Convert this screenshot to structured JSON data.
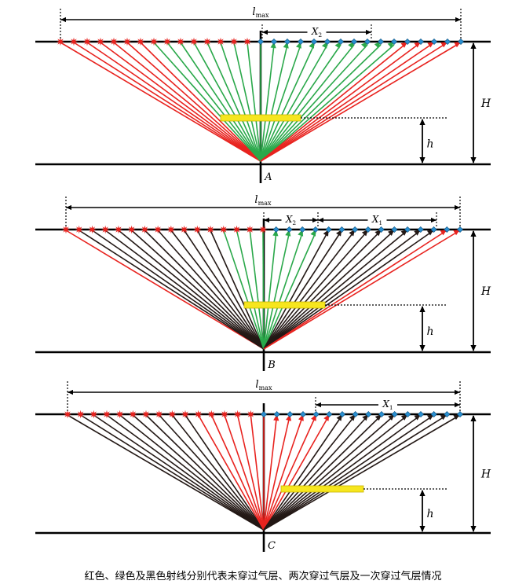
{
  "caption": "红色、绿色及黑色射线分别代表未穿过气层、两次穿过气层及一次穿过气层情况",
  "colors": {
    "red": "#e8231f",
    "green": "#2aa84a",
    "black": "#231815",
    "gas_layer": "#f6e61e",
    "receiver": "#2a8fd0"
  },
  "panels": [
    {
      "label": "A",
      "dim_lmax": {
        "main": "l",
        "sub": "max"
      },
      "dim_H": "H",
      "dim_h": "h",
      "intervals": [
        {
          "main": "X",
          "sub": "2"
        }
      ],
      "ray_colors": [
        "red",
        "red",
        "red",
        "red",
        "red",
        "red",
        "red",
        "green",
        "green",
        "green",
        "green",
        "green",
        "green",
        "green",
        "green",
        "green",
        "green",
        "green",
        "green",
        "green",
        "green",
        "green",
        "green",
        "green",
        "green",
        "green",
        "red",
        "red",
        "red",
        "red",
        "red"
      ]
    },
    {
      "label": "B",
      "dim_lmax": {
        "main": "l",
        "sub": "max"
      },
      "dim_H": "H",
      "dim_h": "h",
      "intervals": [
        {
          "main": "X",
          "sub": "2"
        },
        {
          "main": "X",
          "sub": "1"
        }
      ],
      "ray_colors": [
        "red",
        "black",
        "black",
        "black",
        "black",
        "black",
        "black",
        "black",
        "black",
        "black",
        "black",
        "black",
        "green",
        "green",
        "green",
        "green",
        "green",
        "green",
        "green",
        "green",
        "black",
        "black",
        "black",
        "black",
        "black",
        "black",
        "black",
        "black",
        "black",
        "red",
        "red"
      ]
    },
    {
      "label": "C",
      "dim_lmax": {
        "main": "l",
        "sub": "max"
      },
      "dim_H": "H",
      "dim_h": "h",
      "intervals": [
        {
          "main": "X",
          "sub": "1"
        }
      ],
      "ray_colors": [
        "black",
        "black",
        "black",
        "black",
        "black",
        "black",
        "black",
        "black",
        "black",
        "black",
        "red",
        "red",
        "red",
        "red",
        "red",
        "red",
        "red",
        "red",
        "red",
        "red",
        "red",
        "black",
        "black",
        "black",
        "black",
        "black",
        "black",
        "black",
        "black",
        "black",
        "black"
      ]
    }
  ]
}
